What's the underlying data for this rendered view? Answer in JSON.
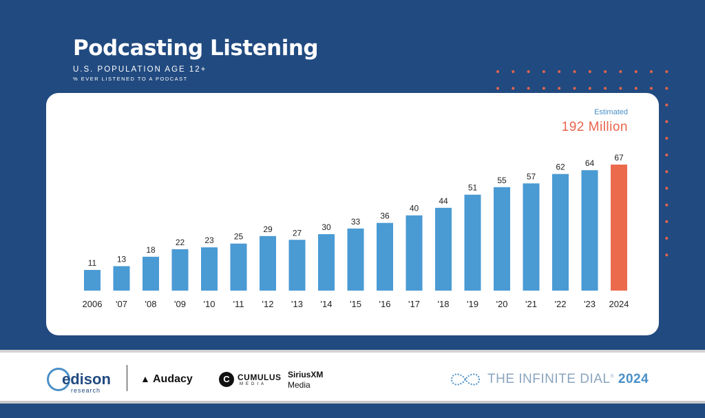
{
  "title": "Podcasting Listening",
  "subtitle": "U.S. POPULATION AGE 12+",
  "subtitle2": "% EVER LISTENED TO A PODCAST",
  "estimate": {
    "label": "Estimated",
    "value": "192 Million"
  },
  "colors": {
    "background": "#214a80",
    "bar": "#4a9ad4",
    "highlight": "#ec6a4c",
    "dots": "#e8644a"
  },
  "chart_data": {
    "type": "bar",
    "categories": [
      "2006",
      "'07",
      "'08",
      "'09",
      "'10",
      "'11",
      "'12",
      "'13",
      "'14",
      "'15",
      "'16",
      "'17",
      "'18",
      "'19",
      "'20",
      "'21",
      "'22",
      "'23",
      "2024"
    ],
    "values": [
      11,
      13,
      18,
      22,
      23,
      25,
      29,
      27,
      30,
      33,
      36,
      40,
      44,
      51,
      55,
      57,
      62,
      64,
      67
    ],
    "highlight_category": "2024",
    "title": "Podcasting Listening",
    "xlabel": "",
    "ylabel": "",
    "ylim": [
      0,
      67
    ],
    "grid": false
  },
  "footer": {
    "logos": {
      "edison": "edison",
      "edison_sub": "research",
      "audacy": "Audacy",
      "cumulus": "CUMULUS",
      "cumulus_sub": "MEDIA",
      "siriusxm": "SiriusXM",
      "siriusxm_sub": "Media"
    },
    "infinite_dial": "THE INFINITE DIAL",
    "infinite_dial_year": "2024",
    "infinite_dial_mark": "®"
  }
}
